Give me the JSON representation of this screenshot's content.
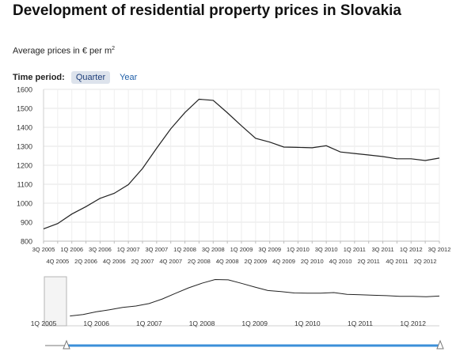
{
  "title": "Development of residential property prices in Slovakia",
  "subtitle": {
    "text": "Average prices in € per m",
    "superscript": "2"
  },
  "time_period": {
    "label": "Time period:",
    "options": [
      "Quarter",
      "Year"
    ],
    "selected": "Quarter"
  },
  "chart_data": {
    "type": "line",
    "title": "Development of residential property prices in Slovakia",
    "subtitle": "Average prices in € per m2",
    "ylim": [
      800,
      1600
    ],
    "yticks": [
      800,
      900,
      1000,
      1100,
      1200,
      1300,
      1400,
      1500,
      1600
    ],
    "grid": true,
    "categories": [
      "3Q 2005",
      "4Q 2005",
      "1Q 2006",
      "2Q 2006",
      "3Q 2006",
      "4Q 2006",
      "1Q 2007",
      "2Q 2007",
      "3Q 2007",
      "4Q 2007",
      "1Q 2008",
      "2Q 2008",
      "3Q 2008",
      "4Q 2008",
      "1Q 2009",
      "2Q 2009",
      "3Q 2009",
      "4Q 2009",
      "1Q 2010",
      "2Q 2010",
      "3Q 2010",
      "4Q 2010",
      "1Q 2011",
      "2Q 2011",
      "3Q 2011",
      "4Q 2011",
      "1Q 2012",
      "2Q 2012",
      "3Q 2012"
    ],
    "series": [
      {
        "name": "",
        "values": [
          865,
          893,
          943,
          982,
          1026,
          1052,
          1098,
          1183,
          1290,
          1392,
          1478,
          1548,
          1542,
          1477,
          1408,
          1342,
          1322,
          1296,
          1294,
          1292,
          1303,
          1270,
          1262,
          1254,
          1246,
          1234,
          1234,
          1225,
          1238
        ]
      }
    ],
    "navigator": {
      "labels": [
        "1Q 2005",
        "1Q 2006",
        "1Q 2007",
        "1Q 2008",
        "1Q 2009",
        "1Q 2010",
        "1Q 2011",
        "1Q 2012"
      ]
    }
  }
}
